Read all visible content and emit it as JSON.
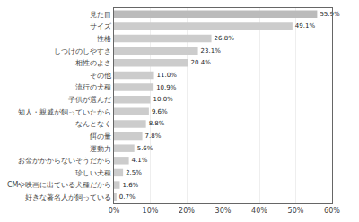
{
  "chart_data": {
    "type": "bar",
    "orientation": "horizontal",
    "categories": [
      "好きな著名人が飼っている",
      "CMや映画に出ている犬種だから",
      "珍しい犬種",
      "お金がかからないそうだから",
      "運動力",
      "餌の量",
      "なんとなく",
      "知人・親戚が飼っていたから",
      "子供が選んだ",
      "流行の犬種",
      "その他",
      "相性のよさ",
      "しつけのしやすさ",
      "性格",
      "サイズ",
      "見た目"
    ],
    "values": [
      0.7,
      1.6,
      2.5,
      4.1,
      5.6,
      7.8,
      8.8,
      9.6,
      10.0,
      10.9,
      11.0,
      20.4,
      23.1,
      26.8,
      49.1,
      55.9
    ],
    "value_labels": [
      "0.7%",
      "1.6%",
      "2.5%",
      "4.1%",
      "5.6%",
      "7.8%",
      "8.8%",
      "9.6%",
      "10.0%",
      "10.9%",
      "11.0%",
      "20.4%",
      "23.1%",
      "26.8%",
      "49.1%",
      "55.9%"
    ],
    "data_labels": true,
    "colors": [
      "#cccccc",
      "#cccccc",
      "#cccccc",
      "#cccccc",
      "#cccccc",
      "#cccccc",
      "#cccccc",
      "#cccccc",
      "#cccccc",
      "#cccccc",
      "#cccccc",
      "#cccccc",
      "#cccccc",
      "#cccccc",
      "#cccccc",
      "#bbbbbb"
    ],
    "xlim": [
      0,
      60
    ],
    "xticks": [
      {
        "value": 0,
        "label": "0%"
      },
      {
        "value": 10,
        "label": "10%"
      },
      {
        "value": 20,
        "label": "20%"
      },
      {
        "value": 30,
        "label": "30%"
      },
      {
        "value": 40,
        "label": "40%"
      },
      {
        "value": 50,
        "label": "50%"
      },
      {
        "value": 60,
        "label": "60%"
      }
    ],
    "grid": true
  }
}
